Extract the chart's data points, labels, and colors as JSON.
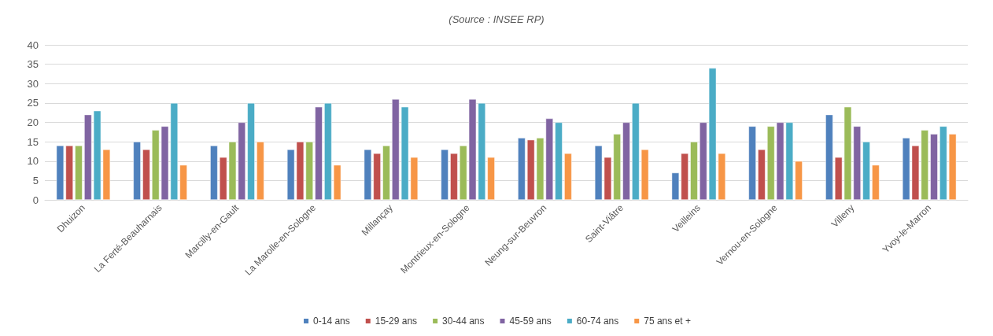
{
  "chart_data": {
    "type": "bar",
    "annotations": [
      "(Source : INSEE RP)"
    ],
    "categories": [
      "Dhuizon",
      "La Ferté-Beauharnais",
      "Marcilly-en-Gault",
      "La Marolle-en-Sologne",
      "Millançay",
      "Montrieux-en-Sologne",
      "Neung-sur-Beuvron",
      "Saint-Viâtre",
      "Veilleins",
      "Vernou-en-Sologne",
      "Villeny",
      "Yvoy-le-Marron"
    ],
    "series": [
      {
        "name": "0-14 ans",
        "color": "#4f81bd",
        "values": [
          14,
          15,
          14,
          13,
          13,
          13,
          16,
          14,
          7,
          19,
          22,
          16
        ]
      },
      {
        "name": "15-29 ans",
        "color": "#c0504d",
        "values": [
          14,
          13,
          11,
          15,
          12,
          12,
          15.5,
          11,
          12,
          13,
          11,
          14
        ]
      },
      {
        "name": "30-44 ans",
        "color": "#9bbb59",
        "values": [
          14,
          18,
          15,
          15,
          14,
          14,
          16,
          17,
          15,
          19,
          24,
          18
        ]
      },
      {
        "name": "45-59 ans",
        "color": "#8064a2",
        "values": [
          22,
          19,
          20,
          24,
          26,
          26,
          21,
          20,
          20,
          20,
          19,
          17
        ]
      },
      {
        "name": "60-74 ans",
        "color": "#4bacc6",
        "values": [
          23,
          25,
          25,
          25,
          24,
          25,
          20,
          25,
          34,
          20,
          15,
          19
        ]
      },
      {
        "name": "75 ans et +",
        "color": "#f79646",
        "values": [
          13,
          9,
          15,
          9,
          11,
          11,
          12,
          13,
          12,
          10,
          9,
          17
        ]
      }
    ],
    "ylim": [
      0,
      40
    ],
    "yticks": [
      0,
      5,
      10,
      15,
      20,
      25,
      30,
      35,
      40
    ],
    "grid": "y",
    "legend": "bottom"
  }
}
